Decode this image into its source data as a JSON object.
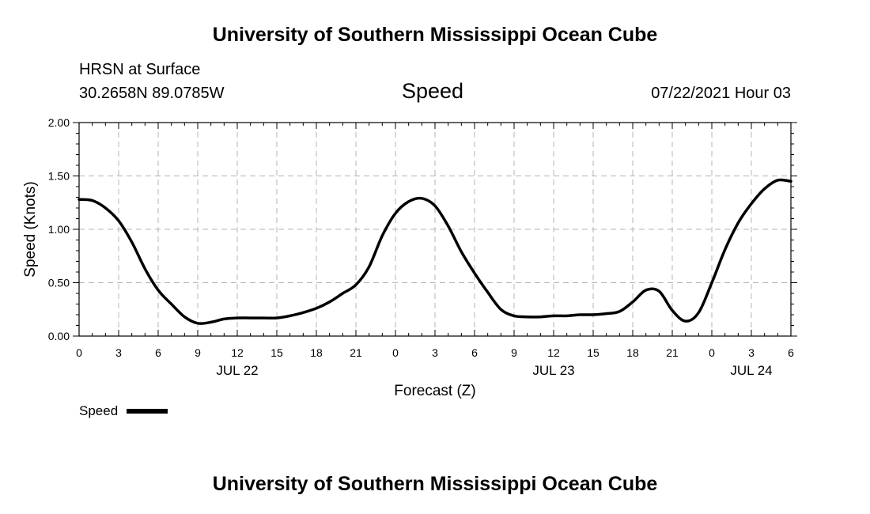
{
  "header": {
    "title": "University of Southern Mississippi Ocean Cube",
    "station": "HRSN at Surface",
    "coordinates": "30.2658N  89.0785W",
    "chart_title": "Speed",
    "datetime": "07/22/2021 Hour 03"
  },
  "footer": {
    "title": "University of Southern Mississippi Ocean Cube"
  },
  "legend": {
    "label": "Speed",
    "color": "#000000"
  },
  "chart_data": {
    "type": "line",
    "title": "Speed",
    "xlabel": "Forecast (Z)",
    "ylabel": "Speed (Knots)",
    "xlim": [
      0,
      54
    ],
    "ylim": [
      0,
      2
    ],
    "x_ticks": [
      0,
      3,
      6,
      9,
      12,
      15,
      18,
      21,
      24,
      27,
      30,
      33,
      36,
      39,
      42,
      45,
      48,
      51,
      54
    ],
    "x_tick_labels": [
      "0",
      "3",
      "6",
      "9",
      "12",
      "15",
      "18",
      "21",
      "0",
      "3",
      "6",
      "9",
      "12",
      "15",
      "18",
      "21",
      "0",
      "3",
      "6"
    ],
    "date_labels": [
      {
        "x": 12,
        "text": "JUL 22"
      },
      {
        "x": 36,
        "text": "JUL 23"
      },
      {
        "x": 51,
        "text": "JUL 24"
      }
    ],
    "y_ticks": [
      0,
      0.5,
      1,
      1.5,
      2
    ],
    "y_tick_labels": [
      "0.00",
      "0.50",
      "1.00",
      "1.50",
      "2.00"
    ],
    "grid": true,
    "legend_position": "bottom-left",
    "series": [
      {
        "name": "Speed",
        "color": "#000000",
        "x": [
          0,
          1,
          2,
          3,
          4,
          5,
          6,
          7,
          8,
          9,
          10,
          11,
          12,
          13,
          14,
          15,
          16,
          17,
          18,
          19,
          20,
          21,
          22,
          23,
          24,
          25,
          26,
          27,
          28,
          29,
          30,
          31,
          32,
          33,
          34,
          35,
          36,
          37,
          38,
          39,
          40,
          41,
          42,
          43,
          44,
          45,
          46,
          47,
          48,
          49,
          50,
          51,
          52,
          53,
          54
        ],
        "values": [
          1.28,
          1.27,
          1.2,
          1.08,
          0.88,
          0.63,
          0.43,
          0.3,
          0.18,
          0.12,
          0.13,
          0.16,
          0.17,
          0.17,
          0.17,
          0.17,
          0.19,
          0.22,
          0.26,
          0.32,
          0.4,
          0.48,
          0.65,
          0.94,
          1.15,
          1.26,
          1.29,
          1.22,
          1.03,
          0.79,
          0.59,
          0.41,
          0.25,
          0.19,
          0.18,
          0.18,
          0.19,
          0.19,
          0.2,
          0.2,
          0.21,
          0.23,
          0.32,
          0.43,
          0.42,
          0.24,
          0.14,
          0.22,
          0.5,
          0.81,
          1.06,
          1.24,
          1.38,
          1.46,
          1.45
        ]
      }
    ]
  }
}
